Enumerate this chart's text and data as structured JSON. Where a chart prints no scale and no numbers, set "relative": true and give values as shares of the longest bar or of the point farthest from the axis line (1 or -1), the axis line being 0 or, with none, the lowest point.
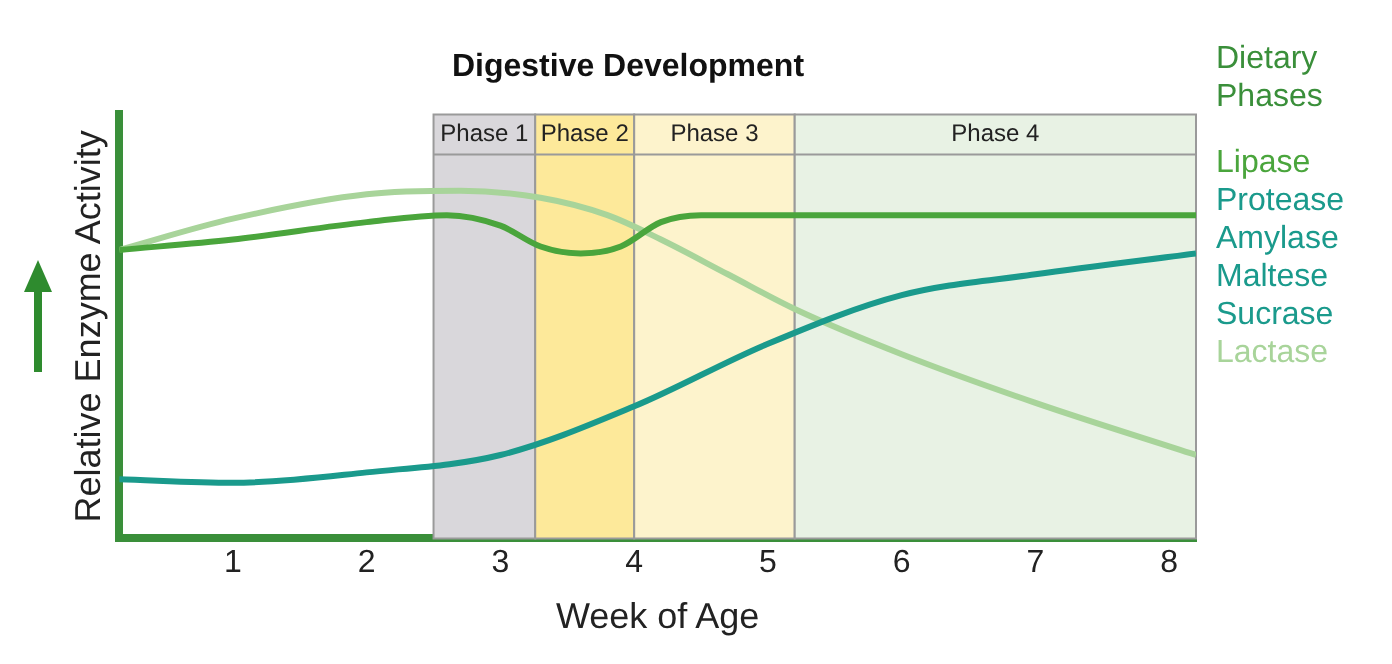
{
  "chart_data": {
    "type": "line",
    "title": "Digestive Development",
    "xlabel": "Week of Age",
    "ylabel": "Relative Enzyme Activity",
    "legend_title": "Dietary Phases",
    "legend": "right",
    "relative": true,
    "grid": false,
    "marker": "none",
    "line_style": "solid",
    "xlim": [
      0.15,
      8.2
    ],
    "xticks": [
      1,
      2,
      3,
      4,
      5,
      6,
      7,
      8
    ],
    "series": [
      {
        "name": "Lipase",
        "color": "#4aa53c",
        "x": [
          0.15,
          1,
          2,
          2.6,
          3,
          3.3,
          3.6,
          3.9,
          4.2,
          4.5,
          8.2
        ],
        "values": [
          0.83,
          0.86,
          0.91,
          0.93,
          0.9,
          0.84,
          0.82,
          0.84,
          0.91,
          0.93,
          0.93
        ]
      },
      {
        "name": "Protease Amylase Maltese Sucrase",
        "color": "#1a9a8c",
        "x": [
          0.15,
          1,
          2,
          3,
          4,
          5,
          6,
          7,
          8.2
        ],
        "values": [
          0.17,
          0.16,
          0.19,
          0.24,
          0.38,
          0.56,
          0.7,
          0.76,
          0.82
        ]
      },
      {
        "name": "Lactase",
        "color": "#a8d49a",
        "x": [
          0.15,
          1,
          2,
          2.7,
          3.3,
          3.8,
          4.2,
          4.7,
          5.2,
          6,
          7,
          8.2
        ],
        "values": [
          0.83,
          0.92,
          0.99,
          1.0,
          0.98,
          0.93,
          0.86,
          0.76,
          0.66,
          0.53,
          0.39,
          0.24
        ]
      }
    ],
    "bands": [
      {
        "axis": "x",
        "from": 2.5,
        "to": 3.26,
        "label": "Phase 1",
        "color": "#d9d7db"
      },
      {
        "axis": "x",
        "from": 3.26,
        "to": 4.0,
        "label": "Phase 2",
        "color": "#fde99a"
      },
      {
        "axis": "x",
        "from": 4.0,
        "to": 5.2,
        "label": "Phase 3",
        "color": "#fdf3cc"
      },
      {
        "axis": "x",
        "from": 5.2,
        "to": 8.2,
        "label": "Phase 4",
        "color": "#e8f2e4"
      }
    ]
  }
}
